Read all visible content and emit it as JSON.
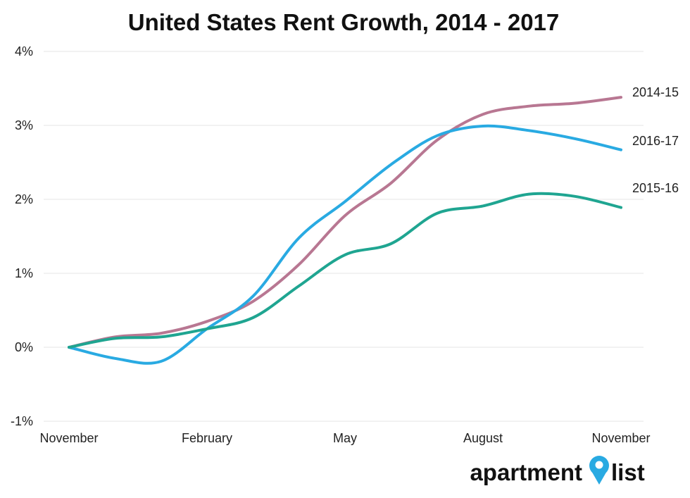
{
  "chart_data": {
    "type": "line",
    "title": "United States Rent Growth, 2014 - 2017",
    "xlabel": "",
    "ylabel": "",
    "x_ticks": [
      "November",
      "February",
      "May",
      "August",
      "November"
    ],
    "x_months": [
      0,
      1,
      2,
      3,
      4,
      5,
      6,
      7,
      8,
      9,
      10,
      11,
      12
    ],
    "y_ticks": [
      "4%",
      "3%",
      "2%",
      "1%",
      "0%",
      "-1%"
    ],
    "y_tick_values": [
      4,
      3,
      2,
      1,
      0,
      -1
    ],
    "ylim": [
      -1,
      4
    ],
    "grid": true,
    "legend": "labels at line ends (right)",
    "series": [
      {
        "name": "2014-15",
        "color": "#b87792",
        "values": [
          0,
          0.14,
          0.19,
          0.35,
          0.62,
          1.12,
          1.78,
          2.22,
          2.8,
          3.15,
          3.26,
          3.3,
          3.38
        ]
      },
      {
        "name": "2016-17",
        "color": "#29aae2",
        "values": [
          0,
          -0.15,
          -0.19,
          0.25,
          0.69,
          1.48,
          1.97,
          2.47,
          2.86,
          2.99,
          2.93,
          2.82,
          2.67
        ]
      },
      {
        "name": "2015-16",
        "color": "#1fa591",
        "values": [
          0,
          0.12,
          0.14,
          0.25,
          0.4,
          0.83,
          1.25,
          1.4,
          1.81,
          1.91,
          2.07,
          2.04,
          1.89
        ]
      }
    ]
  },
  "brand": {
    "text_left": "apartment",
    "text_right": "list",
    "pin_color": "#29aae2"
  }
}
